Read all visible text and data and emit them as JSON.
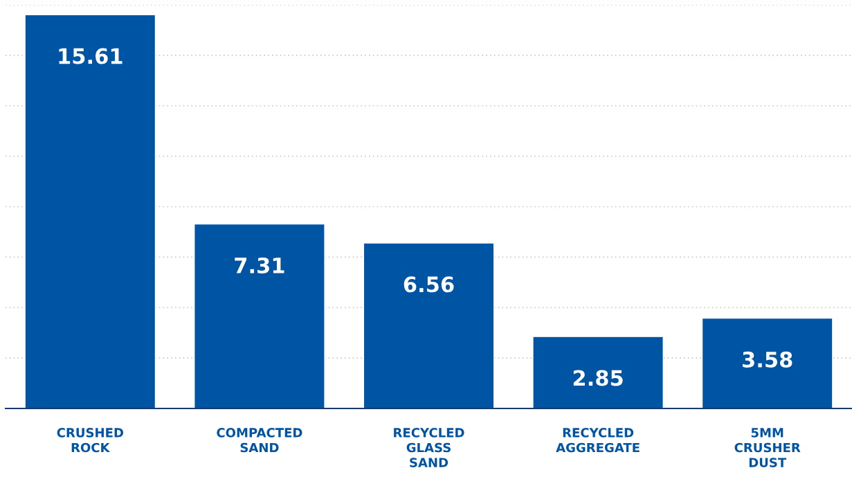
{
  "chart_data": {
    "type": "bar",
    "categories": [
      "CRUSHED\nROCK",
      "COMPACTED\nSAND",
      "RECYCLED\nGLASS\nSAND",
      "RECYCLED\nAGGREGATE",
      "5MM\nCRUSHER\nDUST"
    ],
    "values": [
      15.61,
      7.31,
      6.56,
      2.85,
      3.58
    ],
    "color": "#0054a4",
    "ylim": [
      0,
      16
    ],
    "yticks": [
      {
        "value": 2,
        "label": null
      },
      {
        "value": 4,
        "label": null
      },
      {
        "value": 6,
        "label": null
      },
      {
        "value": 8,
        "label": null
      },
      {
        "value": 10,
        "label": null
      },
      {
        "value": 12,
        "label": null
      },
      {
        "value": 14,
        "label": null
      },
      {
        "value": 16,
        "label": null
      }
    ],
    "grid": "y",
    "tick_labels": "x",
    "data_labels": true
  }
}
